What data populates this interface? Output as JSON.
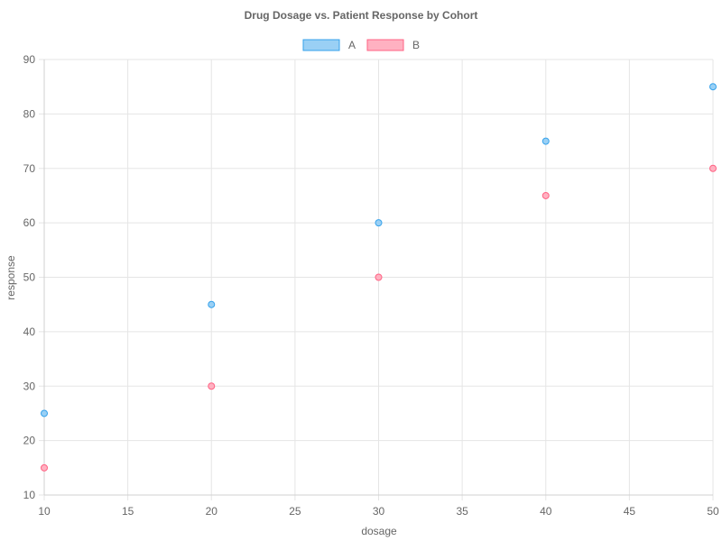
{
  "chart_data": {
    "type": "scatter",
    "title": "Drug Dosage vs. Patient Response by Cohort",
    "xlabel": "dosage",
    "ylabel": "response",
    "xlim": [
      10,
      50
    ],
    "ylim": [
      10,
      90
    ],
    "xticks": [
      10,
      15,
      20,
      25,
      30,
      35,
      40,
      45,
      50
    ],
    "yticks": [
      10,
      20,
      30,
      40,
      50,
      60,
      70,
      80,
      90
    ],
    "grid": true,
    "legend_position": "top-center",
    "series": [
      {
        "name": "A",
        "color": "#36a2eb",
        "fill": "#9ad0f5",
        "points": [
          {
            "x": 10,
            "y": 25
          },
          {
            "x": 20,
            "y": 45
          },
          {
            "x": 30,
            "y": 60
          },
          {
            "x": 40,
            "y": 75
          },
          {
            "x": 50,
            "y": 85
          }
        ]
      },
      {
        "name": "B",
        "color": "#ff6384",
        "fill": "#ffb1c1",
        "points": [
          {
            "x": 10,
            "y": 15
          },
          {
            "x": 20,
            "y": 30
          },
          {
            "x": 30,
            "y": 50
          },
          {
            "x": 40,
            "y": 65
          },
          {
            "x": 50,
            "y": 70
          }
        ]
      }
    ]
  }
}
